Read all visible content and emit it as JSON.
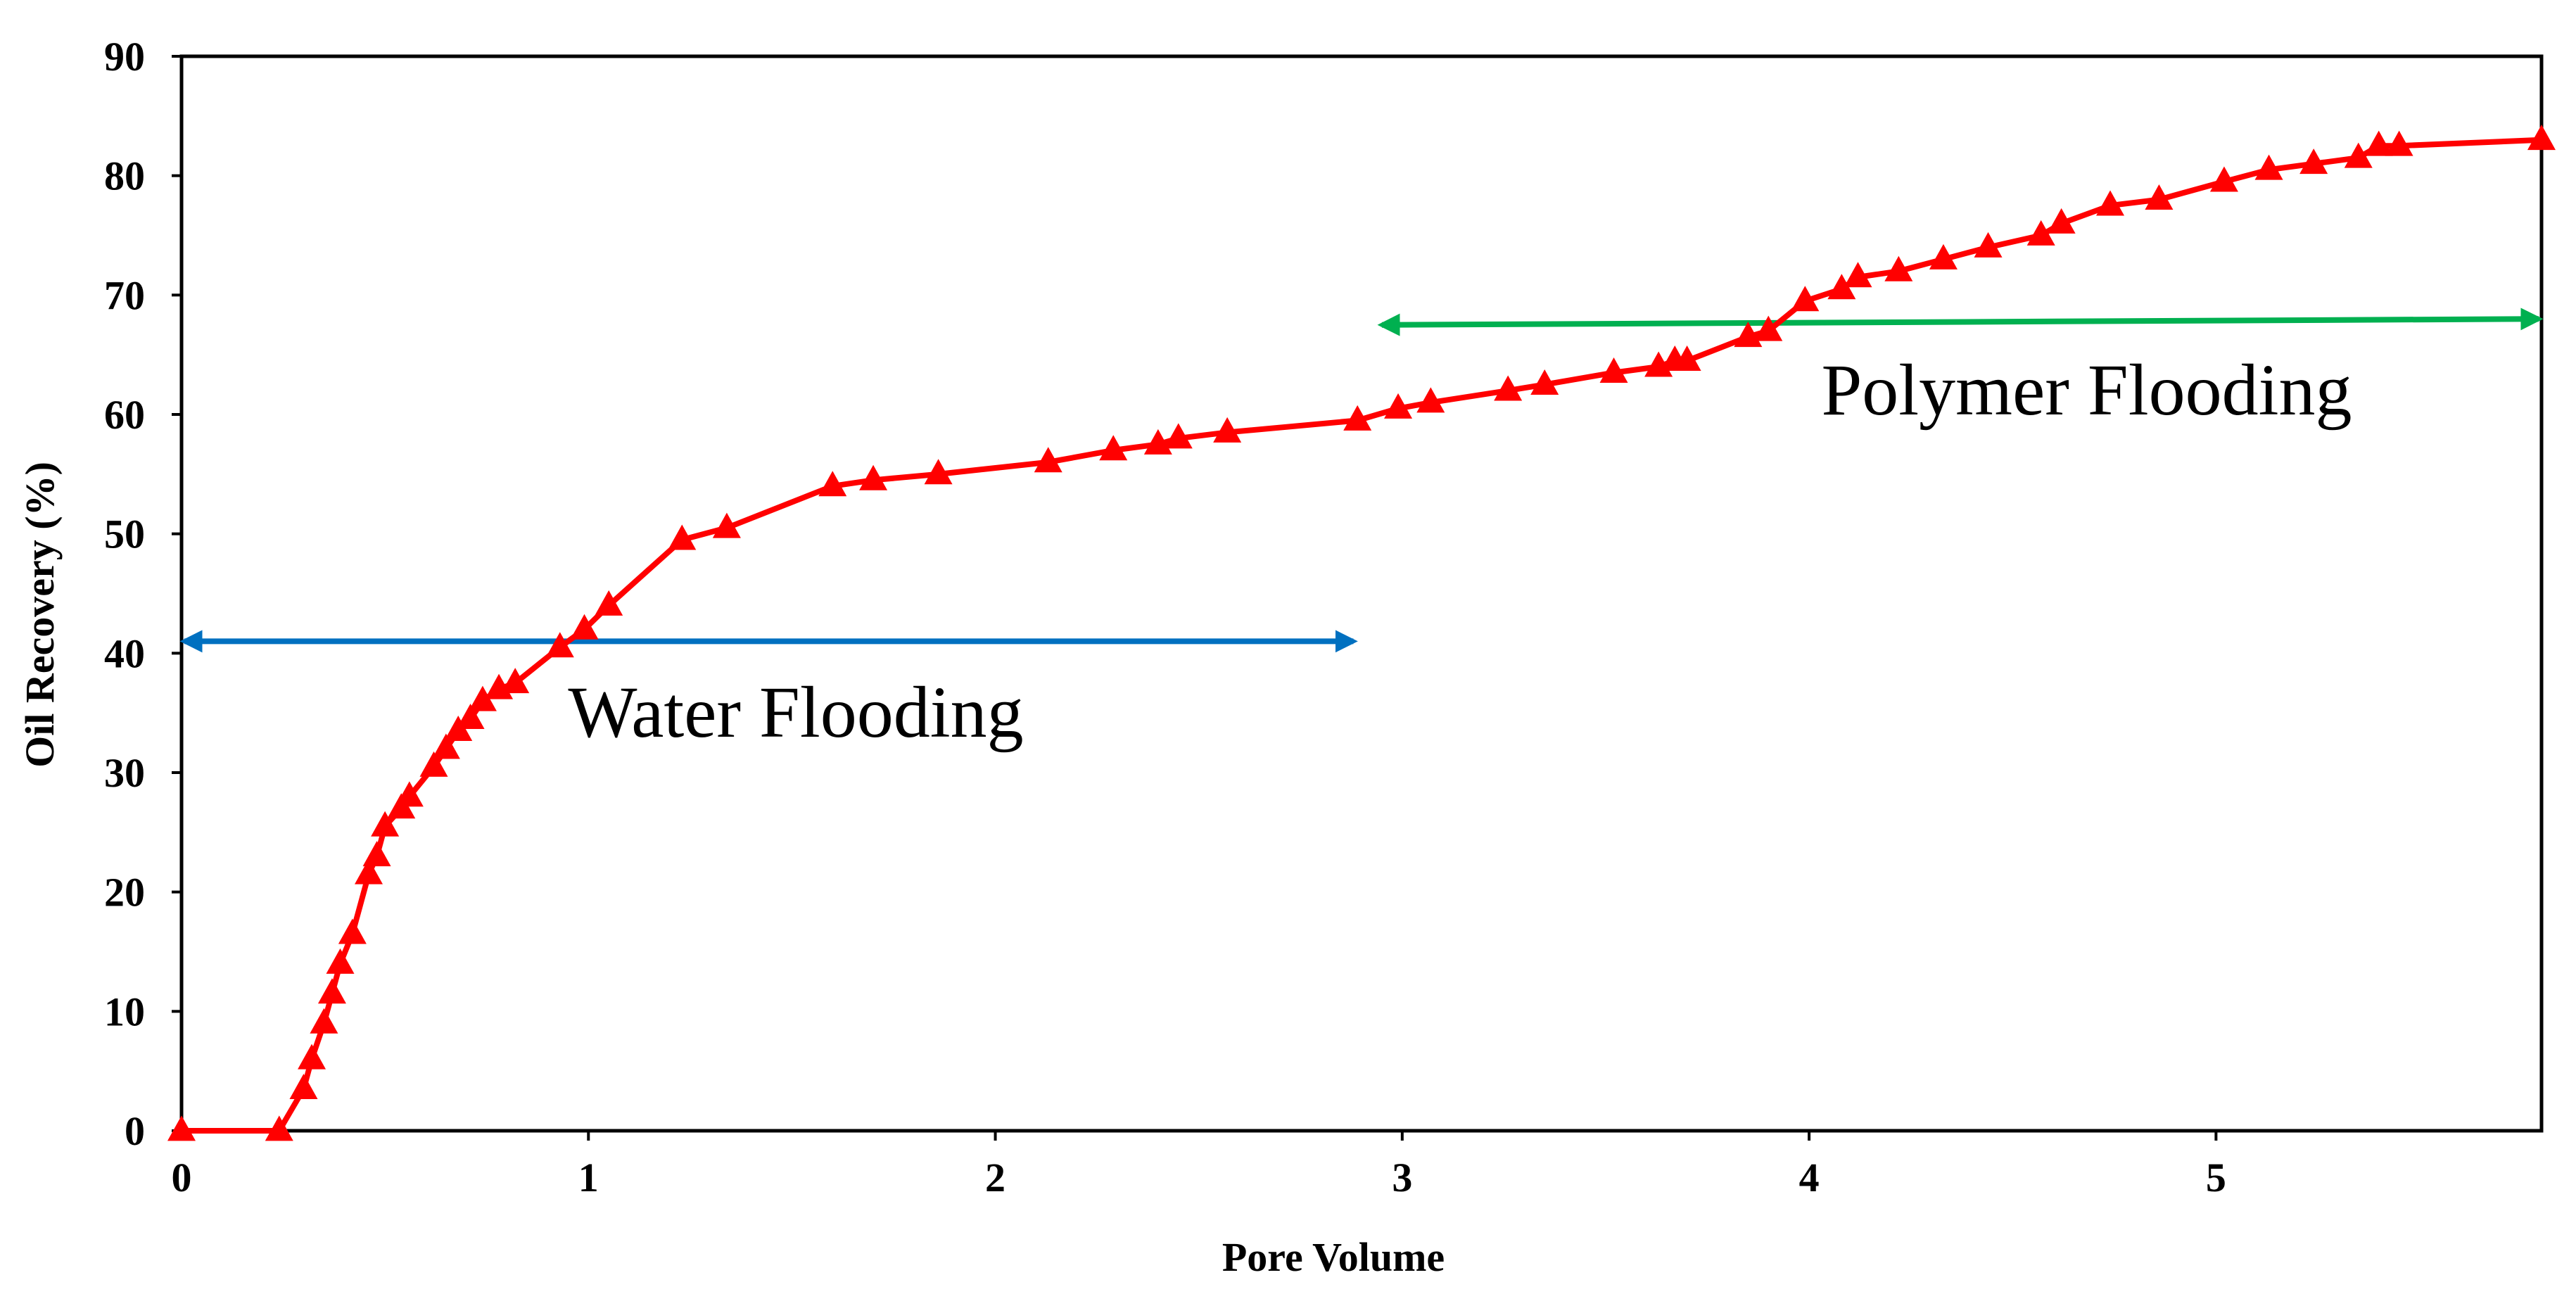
{
  "chart_data": {
    "type": "line",
    "title": "",
    "xlabel": "Pore Volume",
    "ylabel": "Oil Recovery (%)",
    "xlim": [
      0,
      5.8
    ],
    "ylim": [
      0,
      90
    ],
    "xticks": [
      0,
      1,
      2,
      3,
      4,
      5
    ],
    "yticks": [
      0,
      10,
      20,
      30,
      40,
      50,
      60,
      70,
      80,
      90
    ],
    "grid": false,
    "legend": "none",
    "series": [
      {
        "name": "Oil Recovery",
        "color": "#ff0000",
        "marker": "triangle",
        "x": [
          0,
          0.24,
          0.3,
          0.32,
          0.35,
          0.37,
          0.39,
          0.42,
          0.46,
          0.48,
          0.5,
          0.54,
          0.56,
          0.62,
          0.65,
          0.68,
          0.71,
          0.74,
          0.78,
          0.82,
          0.93,
          0.99,
          1.05,
          1.23,
          1.34,
          1.6,
          1.7,
          1.86,
          2.13,
          2.29,
          2.4,
          2.45,
          2.57,
          2.89,
          2.99,
          3.07,
          3.26,
          3.35,
          3.52,
          3.63,
          3.67,
          3.7,
          3.85,
          3.9,
          3.99,
          4.08,
          4.12,
          4.22,
          4.33,
          4.44,
          4.57,
          4.62,
          4.74,
          4.86,
          5.02,
          5.13,
          5.24,
          5.35,
          5.4,
          5.45,
          5.8
        ],
        "y": [
          0,
          0,
          3.5,
          6,
          9,
          11.5,
          14,
          16.5,
          21.5,
          23,
          25.5,
          27,
          28,
          30.5,
          32,
          33.5,
          34.5,
          36,
          37,
          37.5,
          40.5,
          42,
          44,
          49.5,
          50.5,
          54,
          54.5,
          55,
          56,
          57,
          57.5,
          58,
          58.5,
          59.5,
          60.5,
          61,
          62,
          62.5,
          63.5,
          64,
          64.5,
          64.5,
          66.5,
          67,
          69.5,
          70.5,
          71.5,
          72,
          73,
          74,
          75,
          76,
          77.5,
          78,
          79.5,
          80.5,
          81,
          81.5,
          82.5,
          82.5,
          83
        ]
      }
    ],
    "annotations": [
      {
        "name": "water-flooding",
        "text": "Water Flooding",
        "color": "#0070c0",
        "arrow_x_range": [
          0,
          2.88
        ],
        "arrow_y": 41,
        "label_x": 0.95,
        "label_y": 33
      },
      {
        "name": "polymer-flooding",
        "text": "Polymer Flooding",
        "color": "#00b050",
        "arrow_x_range": [
          2.95,
          5.8
        ],
        "arrow_y_start": 67.5,
        "arrow_y_end": 68,
        "label_x": 4.03,
        "label_y": 60
      }
    ]
  }
}
